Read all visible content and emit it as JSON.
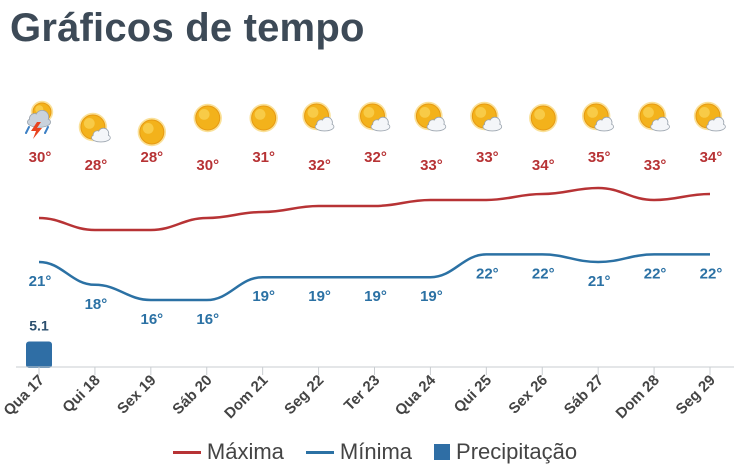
{
  "page": {
    "title": "Gráficos de tempo"
  },
  "legend": {
    "max_label": "Máxima",
    "min_label": "Mínima",
    "precip_label": "Precipitação"
  },
  "colors": {
    "max": "#b73335",
    "min": "#2b71a4",
    "precip": "#2f6ea5",
    "temp_max_label": "#b73335",
    "temp_min_label": "#2b71a4",
    "axis": "#c9cdd1",
    "tick_label": "#444444"
  },
  "chart_data": {
    "type": "line",
    "categories": [
      "Qua 17",
      "Qui 18",
      "Sex 19",
      "Sáb 20",
      "Dom 21",
      "Seg 22",
      "Ter 23",
      "Qua 24",
      "Qui 25",
      "Sex 26",
      "Sáb 27",
      "Dom 28",
      "Seg 29"
    ],
    "series": [
      {
        "name": "Máxima",
        "values": [
          30,
          28,
          28,
          30,
          31,
          32,
          32,
          33,
          33,
          34,
          35,
          33,
          34
        ],
        "labels": [
          "30°",
          "28°",
          "28°",
          "30°",
          "31°",
          "32°",
          "32°",
          "33°",
          "33°",
          "34°",
          "35°",
          "33°",
          "34°"
        ]
      },
      {
        "name": "Mínima",
        "values": [
          21,
          18,
          16,
          16,
          19,
          19,
          19,
          19,
          22,
          22,
          21,
          22,
          22
        ],
        "labels": [
          "21°",
          "18°",
          "16°",
          "16°",
          "19°",
          "19°",
          "19°",
          "19°",
          "22°",
          "22°",
          "21°",
          "22°",
          "22°"
        ]
      },
      {
        "name": "Precipitação",
        "type": "bar",
        "values": [
          5.1,
          0,
          0,
          0,
          0,
          0,
          0,
          0,
          0,
          0,
          0,
          0,
          0
        ],
        "labels": [
          "5.1",
          "",
          "",
          "",
          "",
          "",
          "",
          "",
          "",
          "",
          "",
          "",
          ""
        ]
      }
    ],
    "weather_icons": [
      "thunderstorm-icon",
      "partly-cloudy-icon",
      "sunny-icon",
      "sunny-icon",
      "sunny-icon",
      "partly-cloudy-icon",
      "partly-cloudy-icon",
      "partly-cloudy-icon",
      "partly-cloudy-icon",
      "sunny-icon",
      "partly-cloudy-icon",
      "partly-cloudy-icon",
      "partly-cloudy-icon"
    ],
    "title": "Gráficos de tempo",
    "xlabel": "",
    "ylabel": "",
    "grid": false,
    "legend_position": "bottom"
  }
}
